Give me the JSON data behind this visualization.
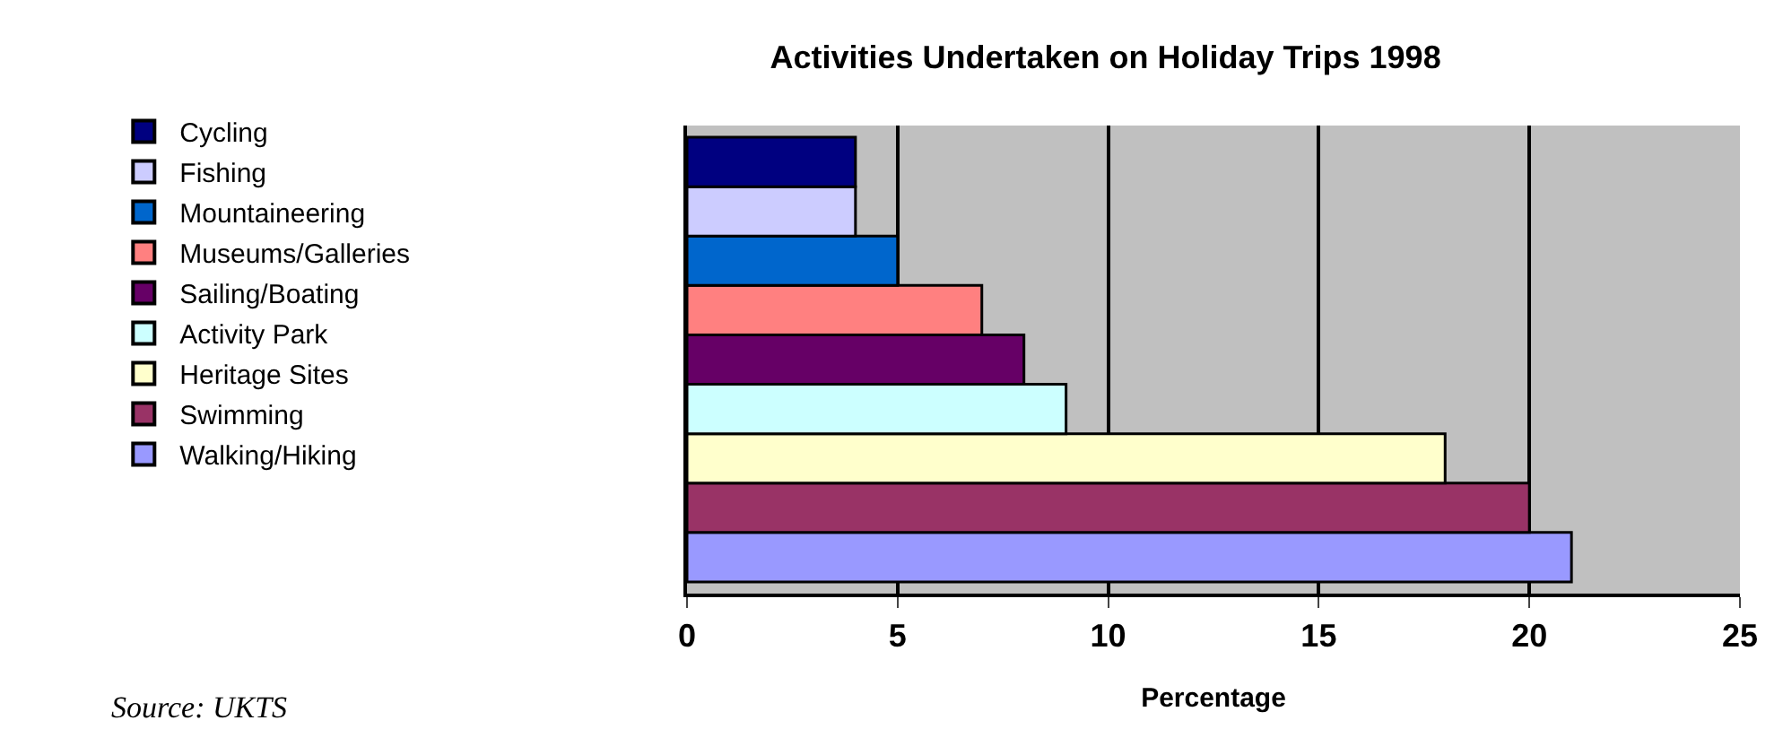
{
  "chart_data": {
    "type": "bar",
    "orientation": "horizontal",
    "title": "Activities Undertaken on Holiday Trips 1998",
    "xlabel": "Percentage",
    "categories": [
      null
    ],
    "series": [
      {
        "name": "Cycling",
        "color": "#000080",
        "values": [
          4
        ]
      },
      {
        "name": "Fishing",
        "color": "#ccccff",
        "values": [
          4
        ]
      },
      {
        "name": "Mountaineering",
        "color": "#0066cc",
        "values": [
          5
        ]
      },
      {
        "name": "Museums/Galleries",
        "color": "#ff8080",
        "values": [
          7
        ]
      },
      {
        "name": "Sailing/Boating",
        "color": "#660066",
        "values": [
          8
        ]
      },
      {
        "name": "Activity Park",
        "color": "#ccffff",
        "values": [
          9
        ]
      },
      {
        "name": "Heritage Sites",
        "color": "#ffffcc",
        "values": [
          18
        ]
      },
      {
        "name": "Swimming",
        "color": "#993366",
        "values": [
          20
        ]
      },
      {
        "name": "Walking/Hiking",
        "color": "#9999ff",
        "values": [
          21
        ]
      }
    ],
    "xlim": [
      0,
      25
    ],
    "xticks": [
      0,
      5,
      10,
      15,
      20,
      25
    ],
    "grid": "x",
    "legend": "left",
    "annotations": [
      "Source: UKTS"
    ]
  }
}
